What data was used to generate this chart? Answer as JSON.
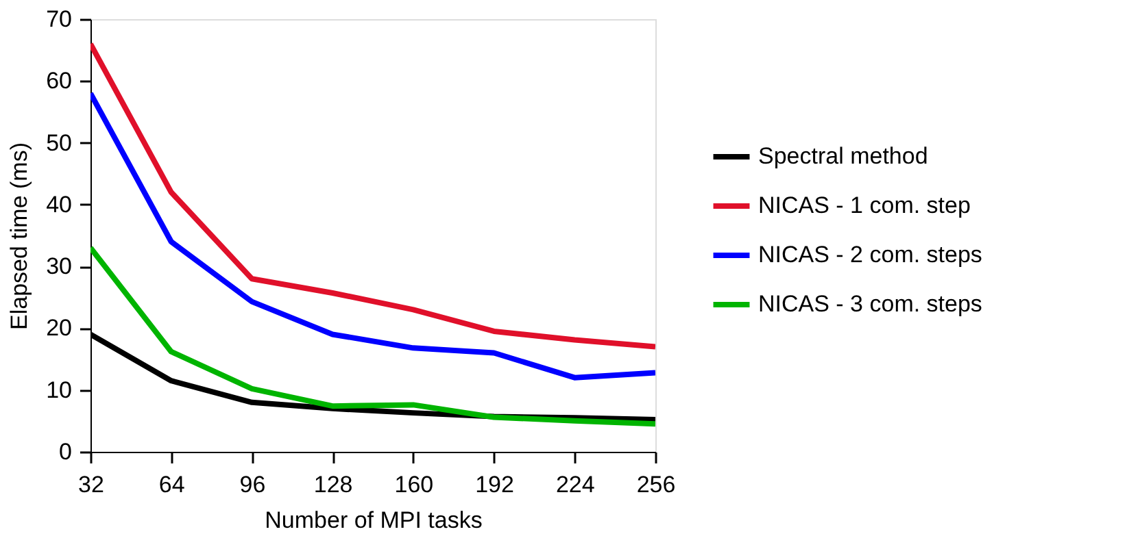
{
  "chart_data": {
    "type": "line",
    "xlabel": "Number of MPI tasks",
    "ylabel": "Elapsed time (ms)",
    "x": [
      32,
      64,
      96,
      128,
      160,
      192,
      224,
      256
    ],
    "xlim": [
      32,
      256
    ],
    "xticks": [
      32,
      64,
      96,
      128,
      160,
      192,
      224,
      256
    ],
    "ylim": [
      0,
      70
    ],
    "yticks": [
      0,
      10,
      20,
      30,
      40,
      50,
      60,
      70
    ],
    "grid": false,
    "legend": "right",
    "marker": "none",
    "line_style": "solid",
    "series": [
      {
        "name": "Spectral method",
        "color": "#000000",
        "values": [
          19,
          11.5,
          8,
          7,
          6.3,
          5.7,
          5.5,
          5.2
        ]
      },
      {
        "name": "NICAS - 1 com. step",
        "color": "#e0102a",
        "values": [
          66,
          42,
          28,
          25.7,
          23,
          19.5,
          18.1,
          17
        ]
      },
      {
        "name": "NICAS - 2 com. steps",
        "color": "#0000ff",
        "values": [
          58,
          34,
          24.3,
          19,
          16.8,
          16,
          12,
          12.8
        ]
      },
      {
        "name": "NICAS - 3 com. steps",
        "color": "#00b400",
        "values": [
          33,
          16.2,
          10.2,
          7.4,
          7.6,
          5.6,
          5,
          4.5
        ]
      }
    ]
  }
}
